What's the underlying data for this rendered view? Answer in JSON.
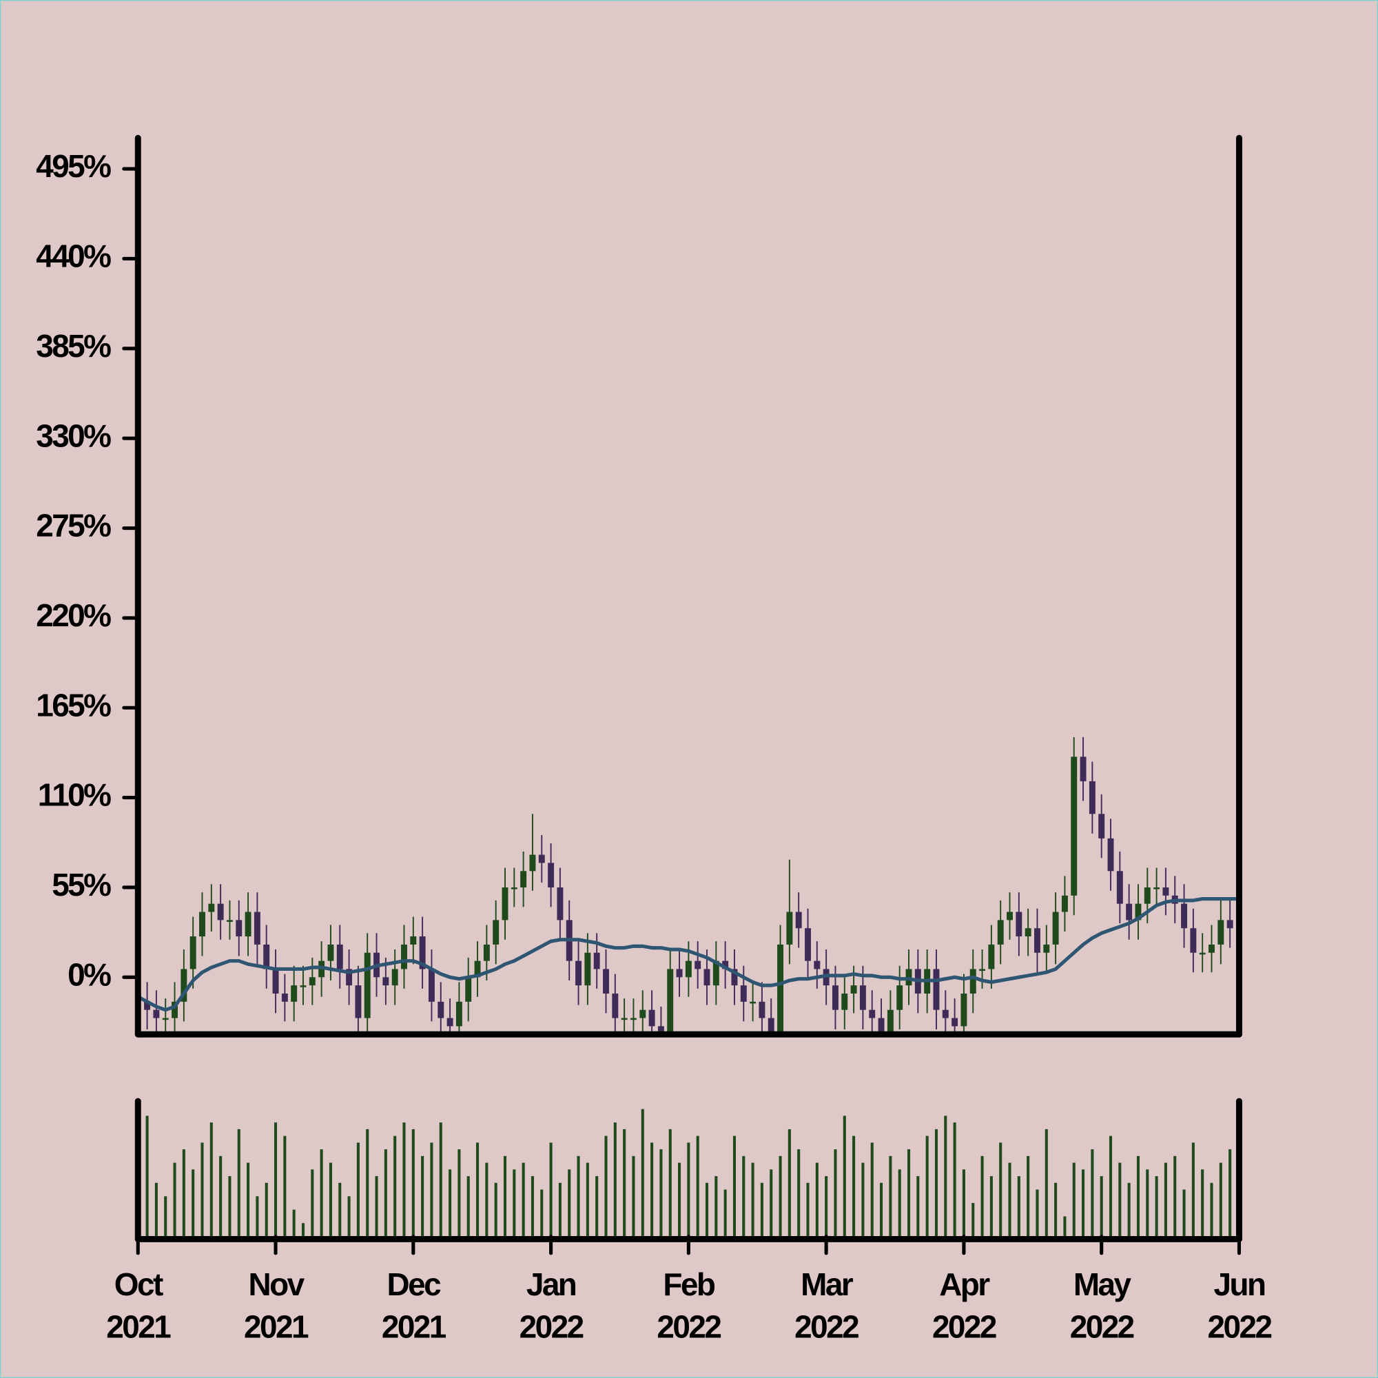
{
  "chart_data": {
    "type": "candlestick",
    "open": [
      -10,
      -15,
      -20,
      -25,
      -25,
      -15,
      5,
      25,
      40,
      45,
      35,
      35,
      25,
      40,
      20,
      5,
      -10,
      -15,
      -5,
      -5,
      0,
      10,
      20,
      5,
      -5,
      -25,
      15,
      0,
      -5,
      5,
      20,
      25,
      5,
      -15,
      -25,
      -30,
      -15,
      0,
      10,
      20,
      35,
      55,
      55,
      65,
      75,
      70,
      55,
      35,
      10,
      -5,
      15,
      5,
      -10,
      -25,
      -25,
      -25,
      -20,
      -30,
      -35,
      5,
      0,
      10,
      5,
      -5,
      10,
      5,
      -5,
      -15,
      -15,
      -25,
      -35,
      20,
      40,
      30,
      10,
      5,
      -5,
      -20,
      -10,
      -5,
      -20,
      -25,
      -35,
      -20,
      -5,
      5,
      -10,
      5,
      -20,
      -25,
      -30,
      -10,
      5,
      5,
      20,
      35,
      40,
      25,
      30,
      15,
      20,
      40,
      50,
      135,
      120,
      100,
      85,
      65,
      45,
      35,
      45,
      55,
      55,
      50,
      45,
      30,
      15,
      15,
      20,
      35,
      30
    ],
    "high": [
      2,
      -3,
      -8,
      -13,
      -3,
      17,
      37,
      52,
      57,
      57,
      47,
      47,
      52,
      52,
      32,
      17,
      2,
      7,
      7,
      12,
      22,
      32,
      32,
      17,
      7,
      27,
      27,
      12,
      17,
      32,
      37,
      37,
      17,
      -3,
      -13,
      -3,
      12,
      22,
      32,
      47,
      67,
      67,
      77,
      100,
      87,
      82,
      67,
      47,
      22,
      27,
      27,
      17,
      2,
      -13,
      -13,
      -8,
      -8,
      -18,
      17,
      17,
      22,
      22,
      17,
      22,
      22,
      17,
      7,
      -3,
      -3,
      -13,
      32,
      72,
      52,
      42,
      22,
      17,
      7,
      2,
      7,
      7,
      -8,
      -13,
      -8,
      7,
      17,
      17,
      17,
      17,
      -8,
      -13,
      2,
      17,
      17,
      32,
      47,
      52,
      52,
      42,
      42,
      32,
      52,
      62,
      147,
      147,
      132,
      112,
      97,
      77,
      57,
      57,
      67,
      67,
      67,
      62,
      57,
      42,
      27,
      32,
      47,
      47,
      57
    ],
    "low": [
      -27,
      -32,
      -37,
      -37,
      -37,
      -27,
      -7,
      13,
      28,
      23,
      23,
      13,
      13,
      8,
      -7,
      -22,
      -27,
      -27,
      -17,
      -17,
      -12,
      -2,
      -7,
      -17,
      -37,
      -37,
      -12,
      -17,
      -17,
      -7,
      8,
      -7,
      -27,
      -37,
      -42,
      -42,
      -27,
      -12,
      -2,
      8,
      23,
      43,
      43,
      53,
      58,
      43,
      23,
      -2,
      -17,
      -17,
      -7,
      -22,
      -37,
      -37,
      -37,
      -37,
      -42,
      -47,
      -47,
      -12,
      -12,
      -7,
      -17,
      -17,
      -7,
      -17,
      -27,
      -27,
      -37,
      -47,
      -47,
      8,
      18,
      -2,
      -7,
      -17,
      -32,
      -32,
      -22,
      -32,
      -37,
      -47,
      -47,
      -32,
      -17,
      -22,
      -22,
      -32,
      -37,
      -42,
      -42,
      -22,
      -7,
      -7,
      8,
      23,
      13,
      13,
      3,
      3,
      8,
      28,
      38,
      108,
      88,
      73,
      53,
      33,
      23,
      23,
      33,
      43,
      38,
      33,
      18,
      3,
      3,
      3,
      8,
      18,
      18
    ],
    "close": [
      -15,
      -20,
      -25,
      -25,
      -15,
      5,
      25,
      40,
      45,
      35,
      35,
      25,
      40,
      20,
      5,
      -10,
      -15,
      -5,
      -5,
      0,
      10,
      20,
      5,
      -5,
      -25,
      15,
      0,
      -5,
      5,
      20,
      25,
      5,
      -15,
      -25,
      -30,
      -15,
      0,
      10,
      20,
      35,
      55,
      55,
      65,
      75,
      70,
      55,
      35,
      10,
      -5,
      15,
      5,
      -10,
      -25,
      -25,
      -25,
      -20,
      -30,
      -35,
      5,
      0,
      10,
      5,
      -5,
      10,
      5,
      -5,
      -15,
      -15,
      -25,
      -35,
      20,
      40,
      30,
      10,
      5,
      -5,
      -20,
      -10,
      -5,
      -20,
      -25,
      -35,
      -20,
      -5,
      5,
      -10,
      5,
      -20,
      -25,
      -30,
      -10,
      5,
      5,
      20,
      35,
      40,
      25,
      30,
      15,
      20,
      40,
      50,
      135,
      120,
      100,
      85,
      65,
      45,
      35,
      45,
      55,
      55,
      50,
      45,
      30,
      15,
      15,
      20,
      35,
      30,
      45
    ],
    "moving_average": [
      -12,
      -15,
      -18,
      -20,
      -18,
      -10,
      -2,
      3,
      6,
      8,
      10,
      10,
      8,
      7,
      6,
      5,
      5,
      5,
      5,
      6,
      6,
      5,
      4,
      3,
      4,
      5,
      7,
      8,
      9,
      10,
      10,
      8,
      5,
      2,
      0,
      -1,
      0,
      1,
      3,
      5,
      8,
      10,
      13,
      16,
      19,
      22,
      23,
      23,
      23,
      22,
      21,
      19,
      18,
      18,
      19,
      19,
      18,
      18,
      17,
      17,
      16,
      14,
      12,
      9,
      6,
      3,
      0,
      -3,
      -5,
      -5,
      -4,
      -2,
      -1,
      -1,
      0,
      1,
      1,
      1,
      2,
      1,
      1,
      0,
      0,
      -1,
      -1,
      -2,
      -2,
      -2,
      -1,
      0,
      -1,
      0,
      -2,
      -3,
      -2,
      -1,
      0,
      1,
      2,
      3,
      5,
      10,
      15,
      20,
      24,
      27,
      29,
      31,
      33,
      36,
      40,
      44,
      46,
      47,
      47,
      47,
      48,
      48,
      48,
      48,
      48
    ],
    "volume": [
      75,
      90,
      40,
      30,
      55,
      65,
      50,
      70,
      85,
      60,
      45,
      80,
      55,
      30,
      40,
      85,
      75,
      20,
      10,
      50,
      65,
      55,
      40,
      30,
      70,
      80,
      45,
      65,
      75,
      85,
      80,
      60,
      70,
      85,
      50,
      65,
      45,
      70,
      55,
      40,
      60,
      50,
      55,
      45,
      35,
      70,
      40,
      50,
      60,
      55,
      45,
      75,
      85,
      80,
      60,
      95,
      70,
      65,
      80,
      55,
      70,
      75,
      40,
      45,
      35,
      75,
      60,
      55,
      40,
      50,
      60,
      80,
      65,
      40,
      55,
      45,
      65,
      90,
      75,
      55,
      70,
      40,
      60,
      50,
      65,
      45,
      75,
      80,
      90,
      85,
      50,
      25,
      60,
      45,
      70,
      55,
      45,
      60,
      35,
      80,
      40,
      15,
      55,
      50,
      65,
      45,
      75,
      55,
      40,
      60,
      50,
      45,
      55,
      60,
      35,
      70,
      50,
      40,
      55,
      65,
      45
    ],
    "up_color": "#1f4a1c",
    "down_color": "#3f2b58",
    "ma_color": "#2e5672",
    "volume_color": "#1f4a1c",
    "xlim": [
      0,
      120
    ],
    "xticks": [
      {
        "value": 0,
        "label": "Oct\n2021"
      },
      {
        "value": 15,
        "label": "Nov\n2021"
      },
      {
        "value": 30,
        "label": "Dec\n2021"
      },
      {
        "value": 45,
        "label": "Jan\n2022"
      },
      {
        "value": 60,
        "label": "Feb\n2022"
      },
      {
        "value": 75,
        "label": "Mar\n2022"
      },
      {
        "value": 90,
        "label": "Apr\n2022"
      },
      {
        "value": 105,
        "label": "May\n2022"
      },
      {
        "value": 120,
        "label": "Jun\n2022"
      }
    ],
    "ylim": [
      -35,
      515
    ],
    "yticks": [
      {
        "value": 0,
        "label": "0%"
      },
      {
        "value": 55,
        "label": "55%"
      },
      {
        "value": 110,
        "label": "110%"
      },
      {
        "value": 165,
        "label": "165%"
      },
      {
        "value": 220,
        "label": "220%"
      },
      {
        "value": 275,
        "label": "275%"
      },
      {
        "value": 330,
        "label": "330%"
      },
      {
        "value": 385,
        "label": "385%"
      },
      {
        "value": 440,
        "label": "440%"
      },
      {
        "value": 495,
        "label": "495%"
      }
    ]
  }
}
